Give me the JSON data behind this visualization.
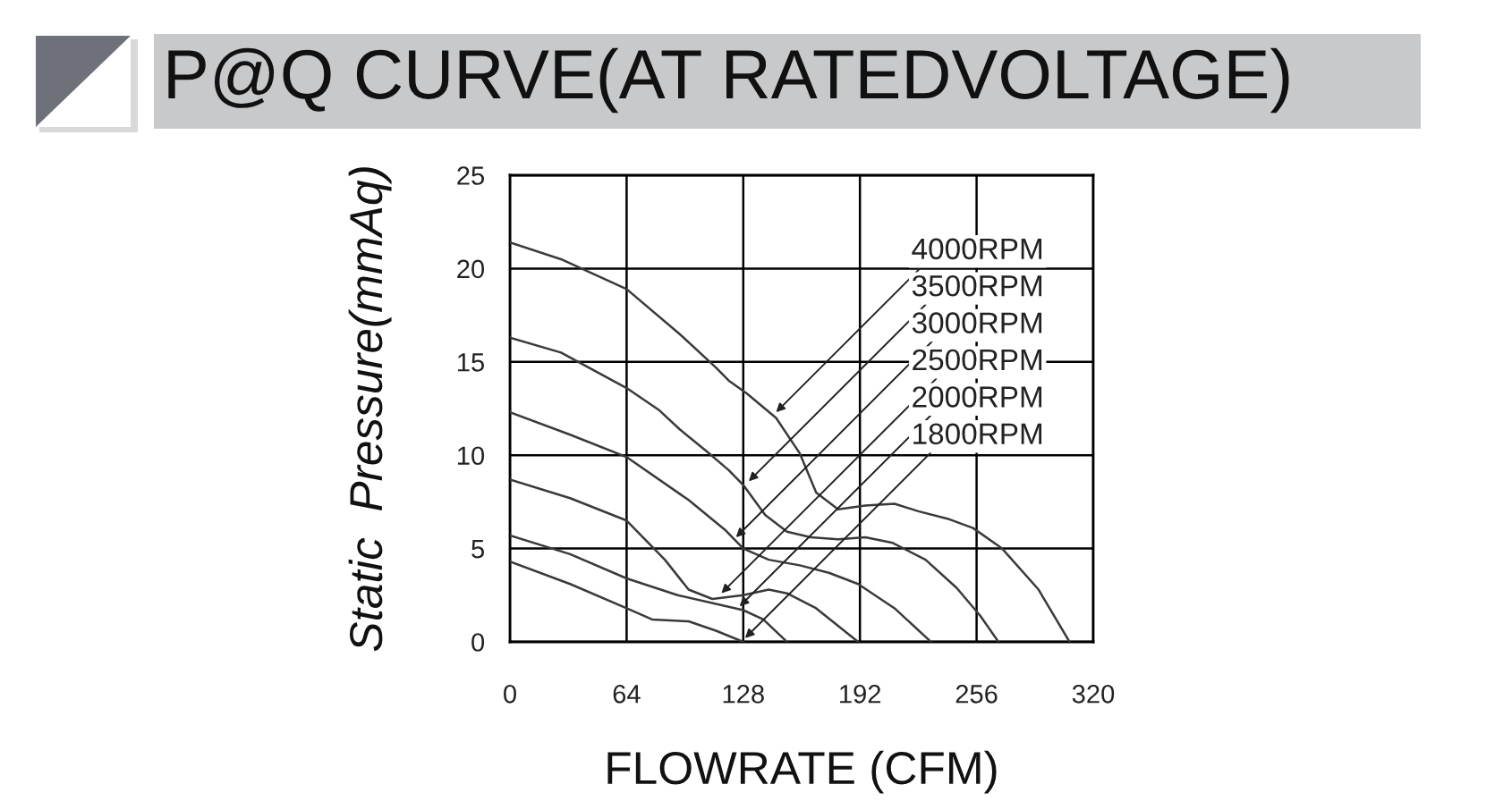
{
  "chart_data": {
    "type": "line",
    "title": "P@Q CURVE(AT RATEDVOLTAGE)",
    "xlabel": "FLOWRATE (CFM)",
    "ylabel": "Static  Pressure(mmAq)",
    "xlim": [
      0,
      320
    ],
    "xticks": [
      0,
      64,
      128,
      192,
      256,
      320
    ],
    "ylim": [
      0,
      25
    ],
    "yticks": [
      0,
      5,
      10,
      15,
      20,
      25
    ],
    "grid": true,
    "series": [
      {
        "color": "#3a3a3a",
        "x": [
          0,
          28,
          64,
          93,
          113,
          120,
          130,
          146,
          159,
          168,
          180,
          195,
          211,
          224,
          240,
          254,
          270,
          290,
          307
        ],
        "values": [
          21.4,
          20.5,
          18.9,
          16.5,
          14.7,
          14.0,
          13.3,
          12.0,
          10.1,
          8.0,
          7.1,
          7.3,
          7.4,
          7.0,
          6.6,
          6.1,
          5.0,
          2.8,
          0
        ]
      },
      {
        "color": "#3a3a3a",
        "x": [
          0,
          28,
          64,
          82,
          93,
          108,
          120,
          128,
          140,
          152,
          165,
          180,
          195,
          210,
          228,
          245,
          258,
          268
        ],
        "values": [
          16.3,
          15.5,
          13.6,
          12.4,
          11.4,
          10.2,
          9.2,
          8.4,
          6.8,
          5.9,
          5.6,
          5.5,
          5.6,
          5.3,
          4.4,
          2.9,
          1.4,
          0
        ]
      },
      {
        "color": "#3a3a3a",
        "x": [
          0,
          33,
          64,
          98,
          118,
          128,
          142,
          159,
          175,
          191,
          211,
          231
        ],
        "values": [
          12.3,
          11.1,
          9.9,
          7.6,
          6.0,
          5.0,
          4.4,
          4.1,
          3.7,
          3.1,
          1.8,
          0
        ]
      },
      {
        "color": "#3a3a3a",
        "x": [
          0,
          33,
          64,
          85,
          98,
          111,
          128,
          142,
          152,
          168,
          191
        ],
        "values": [
          8.7,
          7.7,
          6.5,
          4.4,
          2.8,
          2.3,
          2.5,
          2.8,
          2.6,
          1.8,
          0
        ]
      },
      {
        "color": "#3a3a3a",
        "x": [
          0,
          33,
          64,
          92,
          128,
          139,
          152
        ],
        "values": [
          5.7,
          4.7,
          3.4,
          2.5,
          1.7,
          1.2,
          0
        ]
      },
      {
        "color": "#3a3a3a",
        "x": [
          0,
          33,
          64,
          78,
          98,
          113,
          128
        ],
        "values": [
          4.3,
          3.1,
          1.8,
          1.2,
          1.1,
          0.6,
          0
        ]
      }
    ],
    "annotations": [
      {
        "text": "4000RPM",
        "x": 146,
        "y": 12.3
      },
      {
        "text": "3500RPM",
        "x": 131,
        "y": 8.6
      },
      {
        "text": "3000RPM",
        "x": 124,
        "y": 5.6
      },
      {
        "text": "2500RPM",
        "x": 116,
        "y": 2.6
      },
      {
        "text": "2000RPM",
        "x": 126,
        "y": 1.9
      },
      {
        "text": "1800RPM",
        "x": 129,
        "y": 0.2
      }
    ]
  }
}
